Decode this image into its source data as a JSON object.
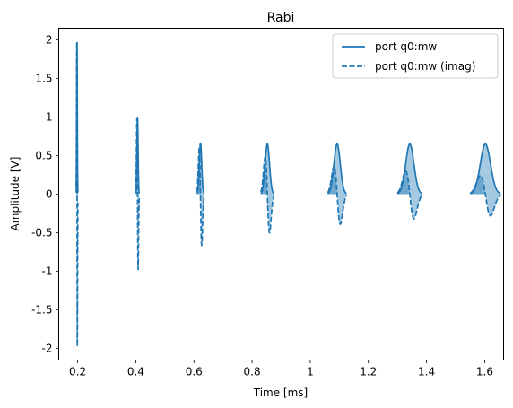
{
  "chart_data": {
    "type": "line",
    "title": "Rabi",
    "xlabel": "Time [ms]",
    "ylabel": "Amplitude [V]",
    "xlim": [
      0.135,
      1.665
    ],
    "ylim": [
      -2.15,
      2.15
    ],
    "xticks": [
      0.2,
      0.4,
      0.6,
      0.8,
      1,
      1.2,
      1.4,
      1.6
    ],
    "xtick_labels": [
      "0.2",
      "0.4",
      "0.6",
      "0.8",
      "1",
      "1.2",
      "1.4",
      "1.6"
    ],
    "yticks": [
      2,
      1.5,
      1,
      0.5,
      0,
      -0.5,
      -1,
      -1.5,
      -2
    ],
    "ytick_labels": [
      "2",
      "1.5",
      "1",
      "0.5",
      "0",
      "-0.5",
      "-1",
      "-1.5",
      "-2"
    ],
    "grid": false,
    "legend_position": "top-right",
    "line_color": "#1f77b4",
    "fill_color": "#1f77b4",
    "pulses": [
      {
        "start": 0.195,
        "duration": 0.006,
        "peak": 1.97,
        "imag_peak": 1.97,
        "imag_min": -1.97
      },
      {
        "start": 0.4,
        "duration": 0.012,
        "peak": 0.98,
        "imag_peak": 0.98,
        "imag_min": -0.98
      },
      {
        "start": 0.61,
        "duration": 0.025,
        "peak": 0.66,
        "imag_peak": 0.6,
        "imag_min": -0.66
      },
      {
        "start": 0.83,
        "duration": 0.045,
        "peak": 0.65,
        "imag_peak": 0.48,
        "imag_min": -0.5
      },
      {
        "start": 1.06,
        "duration": 0.065,
        "peak": 0.65,
        "imag_peak": 0.36,
        "imag_min": -0.39
      },
      {
        "start": 1.3,
        "duration": 0.085,
        "peak": 0.65,
        "imag_peak": 0.3,
        "imag_min": -0.32
      },
      {
        "start": 1.55,
        "duration": 0.105,
        "peak": 0.65,
        "imag_peak": 0.24,
        "imag_min": -0.28
      }
    ],
    "series": [
      {
        "name": "port q0:mw",
        "style": "solid"
      },
      {
        "name": "port q0:mw (imag)",
        "style": "dashed"
      }
    ]
  }
}
